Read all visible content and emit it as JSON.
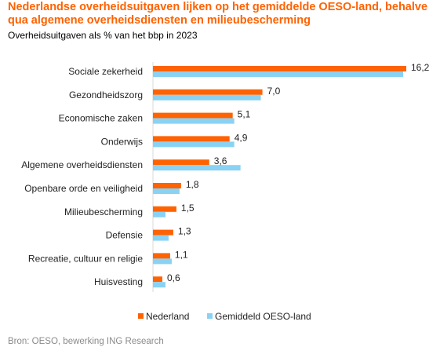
{
  "title": "Nederlandse overheidsuitgaven lijken op het gemiddelde OESO-land, behalve qua algemene overheidsdiensten en milieubescherming",
  "subtitle": "Overheidsuitgaven als % van het bbp in  2023",
  "source": "Bron: OESO, bewerking ING Research",
  "colors": {
    "title": "#ff6200",
    "nl": "#ff6200",
    "oecd": "#89d2f4"
  },
  "chart_data": {
    "type": "bar",
    "orientation": "horizontal",
    "categories": [
      "Sociale zekerheid",
      "Gezondheidszorg",
      "Economische zaken",
      "Onderwijs",
      "Algemene overheidsdiensten",
      "Openbare orde en veiligheid",
      "Milieubescherming",
      "Defensie",
      "Recreatie, cultuur en religie",
      "Huisvesting"
    ],
    "series": [
      {
        "name": "Nederland",
        "values": [
          16.2,
          7.0,
          5.1,
          4.9,
          3.6,
          1.8,
          1.5,
          1.3,
          1.1,
          0.6
        ],
        "labels": [
          "16,2",
          "7,0",
          "5,1",
          "4,9",
          "3,6",
          "1,8",
          "1,5",
          "1,3",
          "1,1",
          "0,6"
        ]
      },
      {
        "name": "Gemiddeld OESO-land",
        "values": [
          16.0,
          6.9,
          5.2,
          5.2,
          5.6,
          1.7,
          0.8,
          1.0,
          1.2,
          0.8
        ]
      }
    ],
    "xlim": [
      0,
      17
    ],
    "grid": false,
    "legend": "bottom"
  }
}
